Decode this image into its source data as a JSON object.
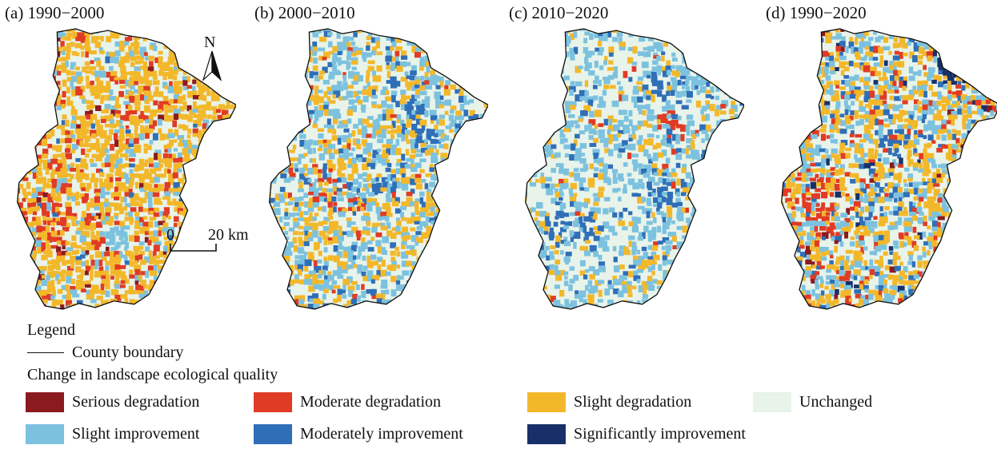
{
  "panels": [
    {
      "label": "(a) 1990−2000",
      "scheme": "a"
    },
    {
      "label": "(b) 2000−2010",
      "scheme": "b"
    },
    {
      "label": "(c) 2010−2020",
      "scheme": "c"
    },
    {
      "label": "(d) 1990−2020",
      "scheme": "d"
    }
  ],
  "north_arrow": {
    "label": "N"
  },
  "scale_bar": {
    "start": "0",
    "end": "20 km"
  },
  "legend": {
    "title": "Legend",
    "boundary_label": "County boundary",
    "change_title": "Change in landscape ecological quality",
    "classes": [
      {
        "label": "Serious degradation",
        "color": "#8b1a1f"
      },
      {
        "label": "Moderate degradation",
        "color": "#e03b24"
      },
      {
        "label": "Slight degradation",
        "color": "#f3b82a"
      },
      {
        "label": "Unchanged",
        "color": "#e8f3ea"
      },
      {
        "label": "Slight improvement",
        "color": "#7cc2df"
      },
      {
        "label": "Moderately improvement",
        "color": "#2f6fb8"
      },
      {
        "label": "Significantly improvement",
        "color": "#18306a"
      }
    ]
  }
}
